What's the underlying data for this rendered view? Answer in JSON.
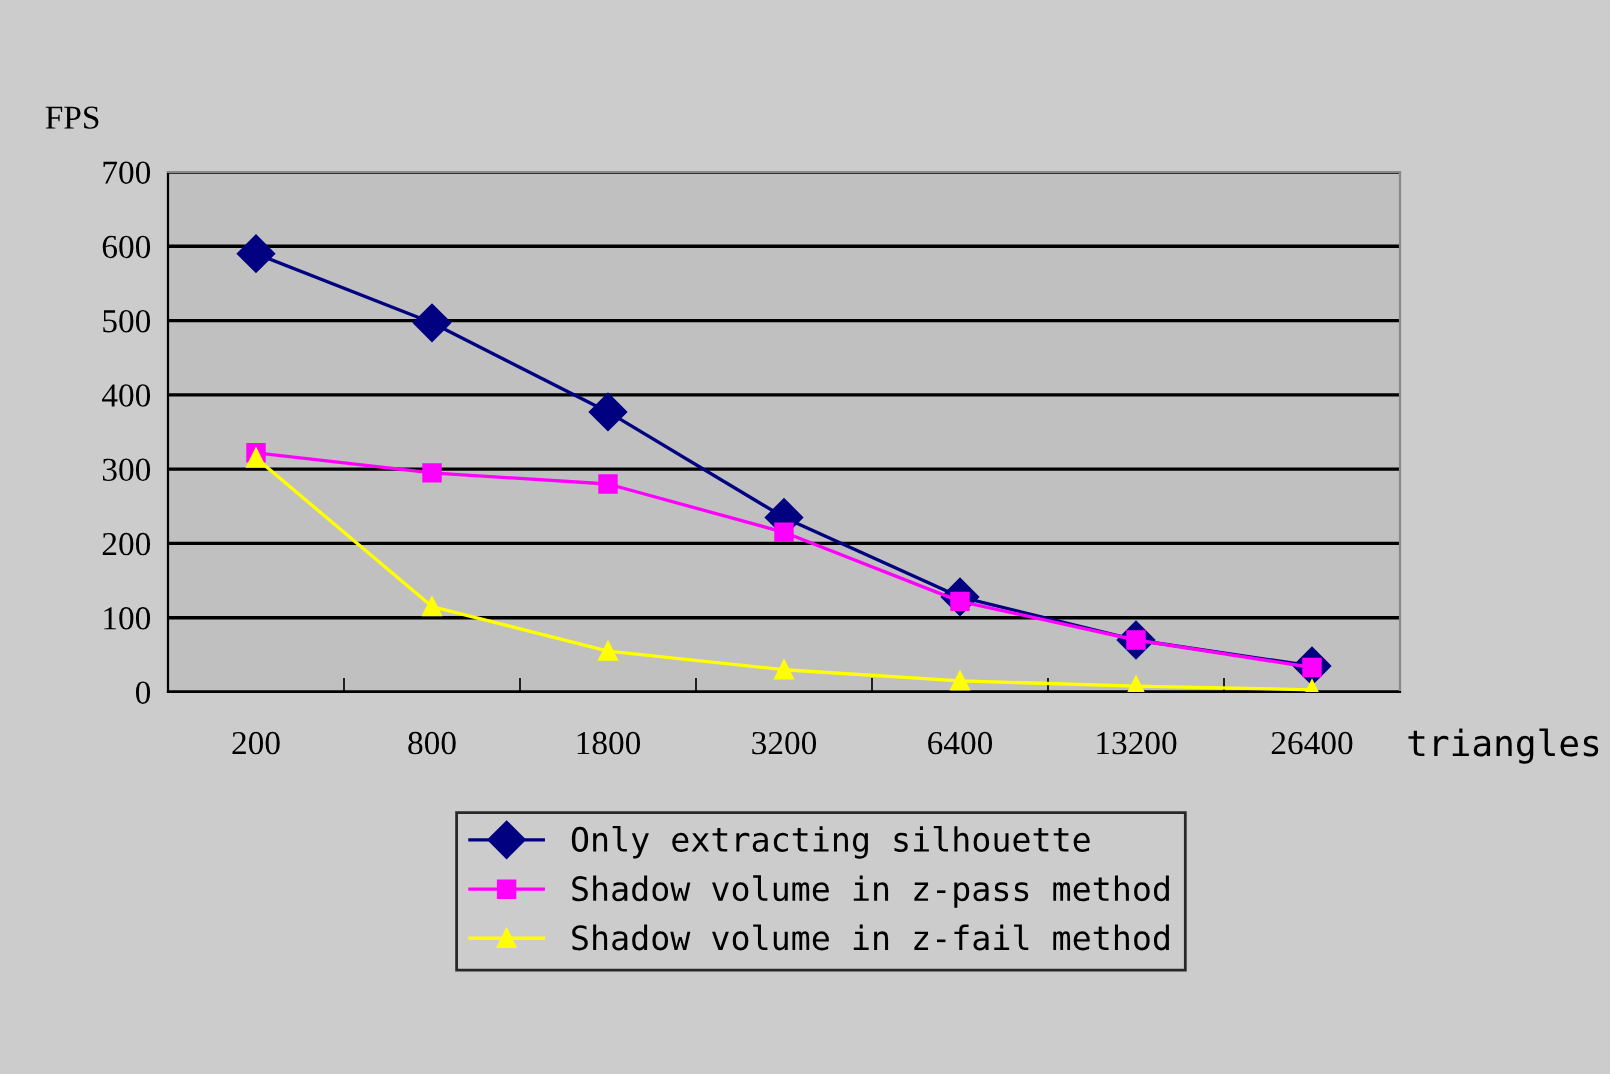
{
  "chart_data": {
    "type": "line",
    "xlabel": "triangles",
    "ylabel": "FPS",
    "categories": [
      "200",
      "800",
      "1800",
      "3200",
      "6400",
      "13200",
      "26400"
    ],
    "series": [
      {
        "name": "Only extracting silhouette",
        "color": "#000080",
        "marker": "diamond",
        "values": [
          590,
          497,
          377,
          235,
          128,
          70,
          35
        ]
      },
      {
        "name": "Shadow volume in z-pass method",
        "color": "#ff00ff",
        "marker": "square",
        "values": [
          322,
          295,
          280,
          215,
          122,
          70,
          33
        ]
      },
      {
        "name": "Shadow volume in z-fail method",
        "color": "#ffff00",
        "marker": "triangle",
        "values": [
          315,
          115,
          55,
          30,
          15,
          8,
          3
        ]
      }
    ],
    "ylim": [
      0,
      700
    ],
    "yticks": [
      0,
      100,
      200,
      300,
      400,
      500,
      600,
      700
    ],
    "grid": "y",
    "legend": "bottom",
    "line_style": "solid"
  }
}
